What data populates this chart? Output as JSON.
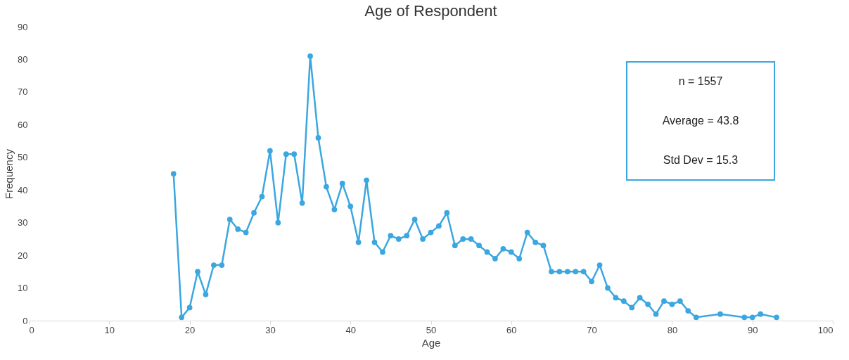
{
  "chart_data": {
    "type": "line",
    "title": "Age of Respondent",
    "xlabel": "Age",
    "ylabel": "Frequency",
    "x": [
      18,
      19,
      20,
      21,
      22,
      23,
      24,
      25,
      26,
      27,
      28,
      29,
      30,
      31,
      32,
      33,
      34,
      35,
      36,
      37,
      38,
      39,
      40,
      41,
      42,
      43,
      44,
      45,
      46,
      47,
      48,
      49,
      50,
      51,
      52,
      53,
      54,
      55,
      56,
      57,
      58,
      59,
      60,
      61,
      62,
      63,
      64,
      65,
      66,
      67,
      68,
      69,
      70,
      71,
      72,
      73,
      74,
      75,
      76,
      77,
      78,
      79,
      80,
      81,
      82,
      83,
      86,
      89,
      90,
      91,
      93
    ],
    "series": [
      {
        "color": "#3ba7e0",
        "values": [
          45,
          1,
          4,
          15,
          8,
          17,
          17,
          31,
          28,
          27,
          33,
          38,
          52,
          30,
          51,
          51,
          36,
          81,
          56,
          41,
          34,
          42,
          35,
          24,
          43,
          24,
          21,
          26,
          25,
          26,
          31,
          25,
          27,
          29,
          33,
          23,
          25,
          25,
          23,
          21,
          19,
          22,
          21,
          19,
          27,
          24,
          23,
          15,
          15,
          15,
          15,
          15,
          12,
          17,
          10,
          7,
          6,
          4,
          7,
          5,
          2,
          6,
          5,
          6,
          3,
          1,
          2,
          1,
          1,
          2,
          1
        ]
      }
    ],
    "xlim": [
      0,
      100
    ],
    "xticks": [
      0,
      10,
      20,
      30,
      40,
      50,
      60,
      70,
      80,
      90,
      100
    ],
    "ylim": [
      0,
      90
    ],
    "yticks": [
      0,
      10,
      20,
      30,
      40,
      50,
      60,
      70,
      80,
      90
    ],
    "marker": "circle",
    "line_style": "solid",
    "grid": false,
    "annotations": [
      "n = 1557",
      "Average = 43.8",
      "Std Dev = 15.3"
    ]
  }
}
